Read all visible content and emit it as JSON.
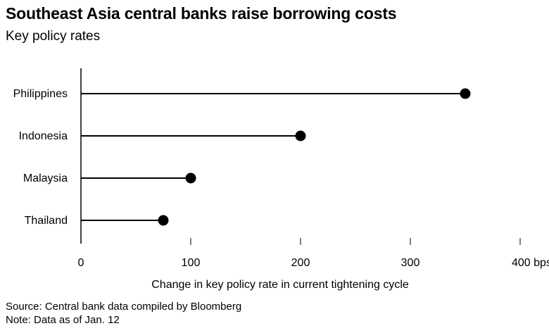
{
  "title": "Southeast Asia central banks raise borrowing costs",
  "subtitle": "Key policy rates",
  "source": "Source: Central bank data compiled by Bloomberg",
  "note": "Note: Data as of Jan. 12",
  "chart_data": {
    "type": "lollipop",
    "orientation": "horizontal",
    "categories": [
      "Philippines",
      "Indonesia",
      "Malaysia",
      "Thailand"
    ],
    "values": [
      350,
      200,
      100,
      75
    ],
    "xlim": [
      0,
      400
    ],
    "xticks": [
      0,
      100,
      200,
      300,
      400
    ],
    "xtick_labels": [
      "0",
      "100",
      "200",
      "300",
      "400 bps"
    ],
    "xlabel": "Change in key policy rate in current tightening cycle",
    "grid": false,
    "color": "#000000"
  }
}
